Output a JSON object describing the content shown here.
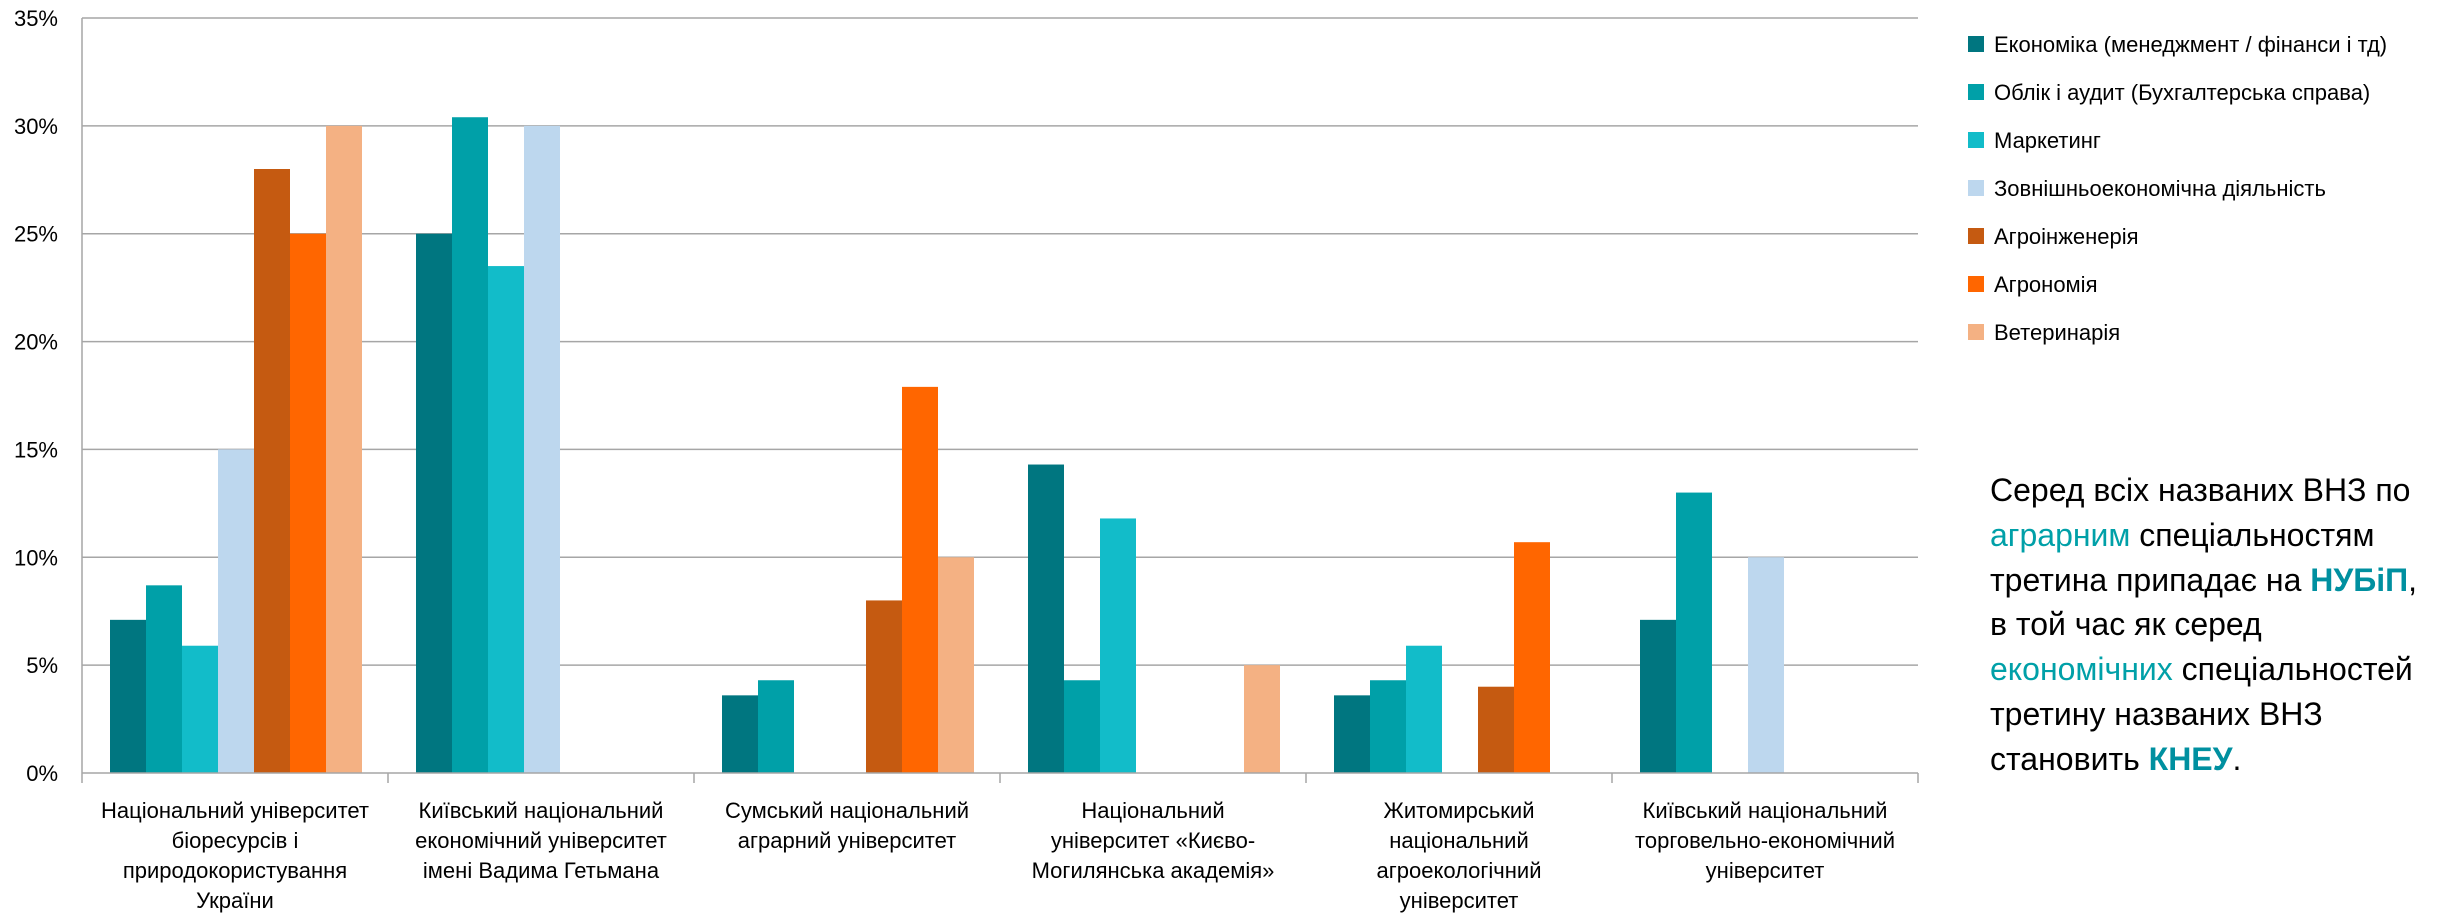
{
  "chart_data": {
    "type": "bar",
    "ylim": [
      0,
      35
    ],
    "yticks": [
      "0%",
      "5%",
      "10%",
      "15%",
      "20%",
      "25%",
      "30%",
      "35%"
    ],
    "grid": true,
    "legend_position": "right",
    "categories": [
      "Національний університет біоресурсів і природокористування України",
      "Київський національний економічний університет імені Вадима Гетьмана",
      "Сумський національний аграрний університет",
      "Національний університет «Києво-Могилянська академія»",
      "Житомирський національний агроекологічний університет",
      "Київський національний торговельно-економічний університет"
    ],
    "category_lines": [
      [
        "Національний університет",
        "біоресурсів і",
        "природокористування",
        "України"
      ],
      [
        "Київський національний",
        "економічний університет",
        "імені Вадима Гетьмана"
      ],
      [
        "Сумський національний",
        "аграрний університет"
      ],
      [
        "Національний",
        "університет «Києво-",
        "Могилянська академія»"
      ],
      [
        "Житомирський",
        "національний",
        "агроекологічний",
        "університет"
      ],
      [
        "Київський національний",
        "торговельно-економічний",
        "університет"
      ]
    ],
    "series": [
      {
        "name": "Економіка (менеджмент / фінанси і тд)",
        "color": "#007680",
        "values": [
          7.1,
          25.0,
          3.6,
          14.3,
          3.6,
          7.1
        ]
      },
      {
        "name": "Облік і аудит (Бухгалтерська справа)",
        "color": "#00A0A8",
        "values": [
          8.7,
          30.4,
          4.3,
          4.3,
          4.3,
          13.0
        ]
      },
      {
        "name": "Маркетинг",
        "color": "#12BCC9",
        "values": [
          5.9,
          23.5,
          0,
          11.8,
          5.9,
          0
        ]
      },
      {
        "name": "Зовнішньоекономічна діяльність",
        "color": "#BDD7EE",
        "values": [
          15.0,
          30.0,
          0,
          0,
          0,
          10.0
        ]
      },
      {
        "name": "Агроінженерія",
        "color": "#C55A11",
        "values": [
          28.0,
          0,
          8.0,
          0,
          4.0,
          0
        ]
      },
      {
        "name": "Агрономія",
        "color": "#FF6600",
        "values": [
          25.0,
          0,
          17.9,
          0,
          10.7,
          0
        ]
      },
      {
        "name": "Ветеринарія",
        "color": "#F4B183",
        "values": [
          30.0,
          0,
          10.0,
          5.0,
          0,
          0
        ]
      }
    ]
  },
  "note": {
    "part1": "Серед всіх названих ВНЗ по ",
    "agr": "аграрним",
    "part2": " спеціальностям третина припадає на ",
    "nubip": "НУБіП",
    "part3": ", в той час як серед ",
    "econ": "економічних",
    "part4": " спеціальностей третину названих ВНЗ становить ",
    "kneu": "КНЕУ",
    "part5": "."
  },
  "colors": {
    "accent_teal": "#00A0A8",
    "bold_teal": "#0090A0",
    "grid": "#A6A6A6"
  }
}
